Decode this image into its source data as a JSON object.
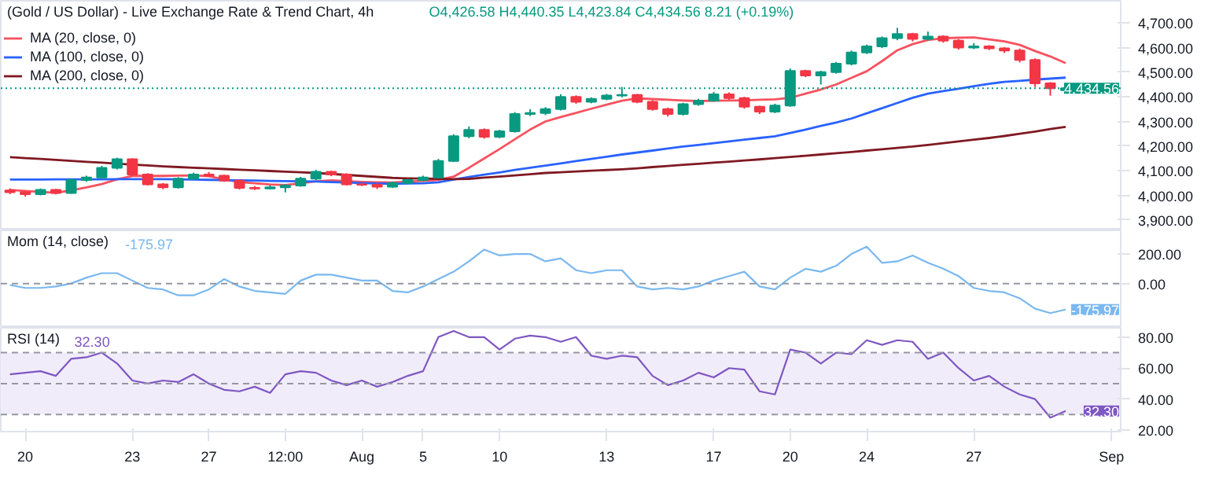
{
  "chart_data": [
    {
      "type": "candlestick",
      "title": "(Gold / US Dollar) - Live Exchange Rate & Trend Chart, 4h",
      "annotations": [
        "O4,426.58 H4,440.35 L4,423.84 C4,434.56 8.21 (+0.19%)"
      ],
      "ohlc": [
        [
          4020,
          4028,
          4005,
          4013
        ],
        [
          4013,
          4018,
          3995,
          4005
        ],
        [
          4005,
          4028,
          4000,
          4022
        ],
        [
          4022,
          4026,
          4004,
          4010
        ],
        [
          4010,
          4068,
          4006,
          4062
        ],
        [
          4062,
          4080,
          4055,
          4073
        ],
        [
          4073,
          4120,
          4068,
          4112
        ],
        [
          4112,
          4153,
          4105,
          4147
        ],
        [
          4147,
          4150,
          4078,
          4085
        ],
        [
          4085,
          4090,
          4040,
          4045
        ],
        [
          4045,
          4050,
          4025,
          4033
        ],
        [
          4033,
          4074,
          4028,
          4068
        ],
        [
          4068,
          4092,
          4062,
          4085
        ],
        [
          4085,
          4095,
          4075,
          4080
        ],
        [
          4080,
          4084,
          4055,
          4060
        ],
        [
          4060,
          4064,
          4024,
          4030
        ],
        [
          4030,
          4038,
          4022,
          4028
        ],
        [
          4028,
          4040,
          4024,
          4033
        ],
        [
          4033,
          4046,
          4012,
          4040
        ],
        [
          4040,
          4075,
          4035,
          4068
        ],
        [
          4068,
          4104,
          4062,
          4096
        ],
        [
          4096,
          4100,
          4078,
          4085
        ],
        [
          4085,
          4090,
          4040,
          4045
        ],
        [
          4045,
          4052,
          4038,
          4043
        ],
        [
          4043,
          4050,
          4026,
          4035
        ],
        [
          4035,
          4056,
          4030,
          4050
        ],
        [
          4050,
          4068,
          4044,
          4062
        ],
        [
          4062,
          4080,
          4056,
          4073
        ],
        [
          4073,
          4148,
          4068,
          4140
        ],
        [
          4140,
          4248,
          4135,
          4240
        ],
        [
          4240,
          4280,
          4232,
          4266
        ],
        [
          4266,
          4272,
          4230,
          4238
        ],
        [
          4238,
          4266,
          4232,
          4260
        ],
        [
          4260,
          4338,
          4255,
          4330
        ],
        [
          4330,
          4350,
          4322,
          4334
        ],
        [
          4334,
          4358,
          4326,
          4350
        ],
        [
          4350,
          4410,
          4345,
          4400
        ],
        [
          4400,
          4406,
          4372,
          4380
        ],
        [
          4380,
          4398,
          4374,
          4392
        ],
        [
          4392,
          4412,
          4386,
          4405
        ],
        [
          4405,
          4440,
          4398,
          4408
        ],
        [
          4408,
          4412,
          4374,
          4380
        ],
        [
          4380,
          4386,
          4344,
          4350
        ],
        [
          4350,
          4356,
          4320,
          4330
        ],
        [
          4330,
          4376,
          4324,
          4370
        ],
        [
          4370,
          4392,
          4364,
          4385
        ],
        [
          4385,
          4420,
          4380,
          4410
        ],
        [
          4410,
          4418,
          4388,
          4395
        ],
        [
          4395,
          4400,
          4352,
          4360
        ],
        [
          4360,
          4364,
          4330,
          4340
        ],
        [
          4340,
          4372,
          4334,
          4365
        ],
        [
          4365,
          4515,
          4360,
          4505
        ],
        [
          4505,
          4510,
          4480,
          4487
        ],
        [
          4487,
          4506,
          4450,
          4500
        ],
        [
          4500,
          4542,
          4494,
          4535
        ],
        [
          4535,
          4588,
          4528,
          4580
        ],
        [
          4580,
          4612,
          4574,
          4605
        ],
        [
          4605,
          4645,
          4598,
          4638
        ],
        [
          4638,
          4680,
          4630,
          4655
        ],
        [
          4655,
          4660,
          4625,
          4635
        ],
        [
          4635,
          4665,
          4628,
          4645
        ],
        [
          4645,
          4650,
          4620,
          4628
        ],
        [
          4628,
          4634,
          4592,
          4600
        ],
        [
          4600,
          4618,
          4594,
          4605
        ],
        [
          4605,
          4610,
          4590,
          4597
        ],
        [
          4597,
          4602,
          4578,
          4588
        ],
        [
          4588,
          4596,
          4540,
          4550
        ],
        [
          4550,
          4556,
          4440,
          4455
        ],
        [
          4455,
          4460,
          4405,
          4435
        ],
        [
          4426.58,
          4440.35,
          4423.84,
          4434.56
        ],
        null,
        null,
        null
      ],
      "colors": [
        "#f23645",
        "#f23645",
        "#089981",
        "#f23645",
        "#089981",
        "#089981",
        "#089981",
        "#089981",
        "#f23645",
        "#f23645",
        "#f23645",
        "#089981",
        "#089981",
        "#f23645",
        "#f23645",
        "#f23645",
        "#f23645",
        "#089981",
        "#089981",
        "#089981",
        "#089981",
        "#f23645",
        "#f23645",
        "#f23645",
        "#f23645",
        "#089981",
        "#089981",
        "#089981",
        "#089981",
        "#089981",
        "#089981",
        "#f23645",
        "#089981",
        "#089981",
        "#089981",
        "#089981",
        "#089981",
        "#f23645",
        "#089981",
        "#089981",
        "#089981",
        "#f23645",
        "#f23645",
        "#f23645",
        "#089981",
        "#089981",
        "#089981",
        "#f23645",
        "#f23645",
        "#f23645",
        "#089981",
        "#089981",
        "#f23645",
        "#089981",
        "#089981",
        "#089981",
        "#089981",
        "#089981",
        "#089981",
        "#f23645",
        "#089981",
        "#f23645",
        "#f23645",
        "#089981",
        "#f23645",
        "#f23645",
        "#f23645",
        "#f23645",
        "#f23645",
        "#089981",
        null,
        null,
        null
      ],
      "series": [
        {
          "type": "line",
          "name": "MA (20, close, 0)",
          "color": "#f7525f",
          "values": [
            4022,
            4018,
            4014,
            4011,
            4020,
            4032,
            4046,
            4065,
            4079,
            4079,
            4079,
            4080,
            4081,
            4078,
            4065,
            4054,
            4049,
            4044,
            4042,
            4049,
            4057,
            4061,
            4058,
            4055,
            4053,
            4052,
            4056,
            4059,
            4063,
            4076,
            4112,
            4150,
            4188,
            4228,
            4267,
            4300,
            4318,
            4335,
            4352,
            4368,
            4384,
            4394,
            4391,
            4388,
            4385,
            4383,
            4384,
            4385,
            4386,
            4388,
            4390,
            4396,
            4413,
            4430,
            4450,
            4477,
            4504,
            4545,
            4589,
            4614,
            4631,
            4638,
            4640,
            4641,
            4633,
            4625,
            4611,
            4586,
            4564,
            4537,
            null,
            null,
            null
          ]
        },
        {
          "type": "line",
          "name": "MA (100, close, 0)",
          "color": "#2962ff",
          "values": [
            4064,
            4064,
            4064,
            4065,
            4065,
            4065,
            4065,
            4066,
            4066,
            4066,
            4066,
            4065,
            4064,
            4063,
            4062,
            4061,
            4060,
            4059,
            4058,
            4057,
            4056,
            4054,
            4052,
            4050,
            4048,
            4047,
            4048,
            4049,
            4053,
            4064,
            4075,
            4084,
            4093,
            4103,
            4112,
            4121,
            4130,
            4139,
            4148,
            4157,
            4166,
            4174,
            4182,
            4190,
            4198,
            4205,
            4212,
            4219,
            4226,
            4233,
            4240,
            4253,
            4267,
            4282,
            4296,
            4312,
            4333,
            4354,
            4375,
            4396,
            4413,
            4423,
            4433,
            4443,
            4453,
            4461,
            4465,
            4470,
            4474,
            4478,
            null,
            null,
            null
          ]
        },
        {
          "type": "line",
          "name": "MA (200, close, 0)",
          "color": "#801922",
          "values": [
            4155,
            4151,
            4148,
            4144,
            4140,
            4136,
            4133,
            4129,
            4125,
            4122,
            4118,
            4115,
            4112,
            4110,
            4107,
            4104,
            4102,
            4099,
            4096,
            4094,
            4091,
            4087,
            4083,
            4079,
            4075,
            4071,
            4069,
            4068,
            4067,
            4066,
            4067,
            4072,
            4076,
            4081,
            4086,
            4091,
            4094,
            4097,
            4100,
            4103,
            4106,
            4110,
            4115,
            4119,
            4124,
            4128,
            4133,
            4137,
            4142,
            4146,
            4151,
            4156,
            4161,
            4166,
            4171,
            4176,
            4182,
            4187,
            4193,
            4198,
            4205,
            4212,
            4219,
            4226,
            4233,
            4241,
            4250,
            4259,
            4269,
            4278,
            null,
            null,
            null
          ]
        }
      ],
      "ylim": [
        3858,
        4790
      ],
      "yticks": [
        {
          "value": 3900,
          "label": "3,900.00"
        },
        {
          "value": 4000,
          "label": "4,000.00"
        },
        {
          "value": 4100,
          "label": "4,100.00"
        },
        {
          "value": 4200,
          "label": "4,200.00"
        },
        {
          "value": 4300,
          "label": "4,300.00"
        },
        {
          "value": 4400,
          "label": "4,400.00"
        },
        {
          "value": 4500,
          "label": "4,500.00"
        },
        {
          "value": 4600,
          "label": "4,600.00"
        },
        {
          "value": 4700,
          "label": "4,700.00"
        }
      ],
      "ref_lines": [
        {
          "axis": "y",
          "value": 4434.56,
          "label": "4,434.56",
          "color": "#089981",
          "line_style": "dotted"
        }
      ],
      "legend": "top left",
      "tick_labels": "y"
    },
    {
      "type": "line",
      "title": "Mom (14, close)",
      "annotations": [
        "-175.97",
        "-175.97"
      ],
      "series": [
        {
          "color": "#7ab8ef",
          "values": [
            -10,
            -30,
            -30,
            -20,
            0,
            40,
            70,
            70,
            20,
            -30,
            -40,
            -80,
            -80,
            -40,
            30,
            -20,
            -50,
            -60,
            -70,
            20,
            60,
            60,
            40,
            20,
            20,
            -50,
            -60,
            -20,
            30,
            80,
            150,
            230,
            190,
            200,
            200,
            150,
            170,
            90,
            70,
            90,
            90,
            -20,
            -40,
            -30,
            -40,
            -20,
            20,
            50,
            80,
            -20,
            -40,
            40,
            100,
            80,
            120,
            200,
            250,
            140,
            150,
            190,
            140,
            100,
            50,
            -30,
            -50,
            -60,
            -100,
            -170,
            -200,
            -175.97,
            null,
            null,
            null
          ]
        }
      ],
      "ylim": [
        -300,
        360
      ],
      "yticks": [
        {
          "value": 0,
          "label": "0.00"
        },
        {
          "value": 200,
          "label": "200.00"
        }
      ],
      "ref_lines": [
        {
          "axis": "y",
          "value": 0,
          "color": "#9598a1",
          "line_style": "dashed"
        }
      ],
      "tick_labels": "y"
    },
    {
      "type": "line",
      "title": "RSI (14)",
      "annotations": [
        "32.30",
        "32.30"
      ],
      "categories": [
        null,
        "20",
        null,
        null,
        null,
        null,
        null,
        null,
        "23",
        null,
        null,
        null,
        null,
        "27",
        null,
        null,
        null,
        null,
        "12:00",
        null,
        null,
        null,
        null,
        "Aug",
        null,
        null,
        null,
        "5",
        null,
        null,
        null,
        null,
        "10",
        null,
        null,
        null,
        null,
        null,
        null,
        "13",
        null,
        null,
        null,
        null,
        null,
        null,
        "17",
        null,
        null,
        null,
        null,
        "20",
        null,
        null,
        null,
        null,
        "24",
        null,
        null,
        null,
        null,
        null,
        null,
        "27",
        null,
        null,
        null,
        null,
        null,
        null,
        null,
        null,
        "Sep"
      ],
      "series": [
        {
          "color": "#7e57c2",
          "values": [
            56,
            57,
            58,
            55,
            66,
            67,
            70,
            63,
            52,
            50,
            52,
            51,
            56,
            50,
            46,
            45,
            48,
            44,
            56,
            58,
            57,
            52,
            49,
            52,
            48,
            51,
            55,
            58,
            80,
            84,
            80,
            80,
            72,
            79,
            81,
            80,
            77,
            80,
            68,
            66,
            68,
            67,
            55,
            49,
            52,
            57,
            54,
            60,
            59,
            45,
            43,
            72,
            70,
            63,
            70,
            69,
            78,
            75,
            78,
            77,
            66,
            70,
            60,
            52,
            55,
            48,
            43,
            40,
            28,
            32.3,
            null,
            null,
            null
          ]
        }
      ],
      "bands": [
        {
          "axis": "y",
          "from": 30,
          "to": 70,
          "color": "#f1ecfa"
        }
      ],
      "ref_lines": [
        {
          "axis": "y",
          "value": 70,
          "color": "#9598a1",
          "line_style": "dashed"
        },
        {
          "axis": "y",
          "value": 50,
          "color": "#9598a1",
          "line_style": "dashed"
        },
        {
          "axis": "y",
          "value": 30,
          "color": "#9598a1",
          "line_style": "dashed"
        }
      ],
      "ylim": [
        19,
        86
      ],
      "yticks": [
        {
          "value": 20,
          "label": "20.00"
        },
        {
          "value": 40,
          "label": "40.00"
        },
        {
          "value": 60,
          "label": "60.00"
        },
        {
          "value": 80,
          "label": "80.00"
        }
      ]
    }
  ]
}
